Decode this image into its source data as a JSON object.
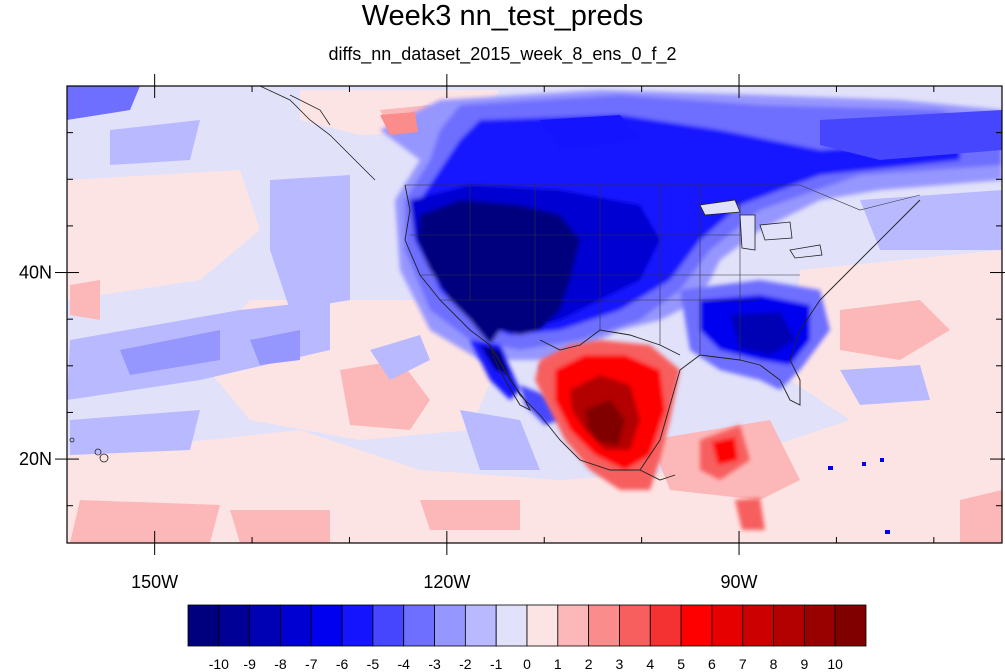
{
  "title": "Week3 nn_test_preds",
  "subtitle": "diffs_nn_dataset_2015_week_8_ens_0_f_2",
  "map": {
    "region": "North America and adjacent Pacific / Gulf of Mexico / Atlantic",
    "lon_range": [
      -159,
      -63
    ],
    "lat_range": [
      11,
      60
    ],
    "x_tick_labels": [
      {
        "lon": -150,
        "label": "150W"
      },
      {
        "lon": -120,
        "label": "120W"
      },
      {
        "lon": -90,
        "label": "90W"
      }
    ],
    "y_tick_labels": [
      {
        "lat": 20,
        "label": "20N"
      },
      {
        "lat": 40,
        "label": "40N"
      }
    ],
    "minor_lon_ticks": [
      -150,
      -140,
      -130,
      -120,
      -110,
      -100,
      -90,
      -80,
      -70
    ],
    "minor_lat_ticks": [
      15,
      20,
      25,
      30,
      35,
      40,
      45,
      50,
      55
    ]
  },
  "colorbar": {
    "labels": [
      "-10",
      "-9",
      "-8",
      "-7",
      "-6",
      "-5",
      "-4",
      "-3",
      "-2",
      "-1",
      "0",
      "1",
      "2",
      "3",
      "4",
      "5",
      "6",
      "7",
      "8",
      "9",
      "10"
    ],
    "colors": [
      "#00007f",
      "#000096",
      "#0000b4",
      "#0000d2",
      "#0000f0",
      "#1414ff",
      "#4646ff",
      "#6e6eff",
      "#9696ff",
      "#b9b9ff",
      "#e1e1fa",
      "#fde4e4",
      "#fcb8b8",
      "#fa8c8c",
      "#f75f5f",
      "#f53232",
      "#ff0000",
      "#e60000",
      "#cc0000",
      "#b30000",
      "#990000",
      "#800000"
    ]
  }
}
